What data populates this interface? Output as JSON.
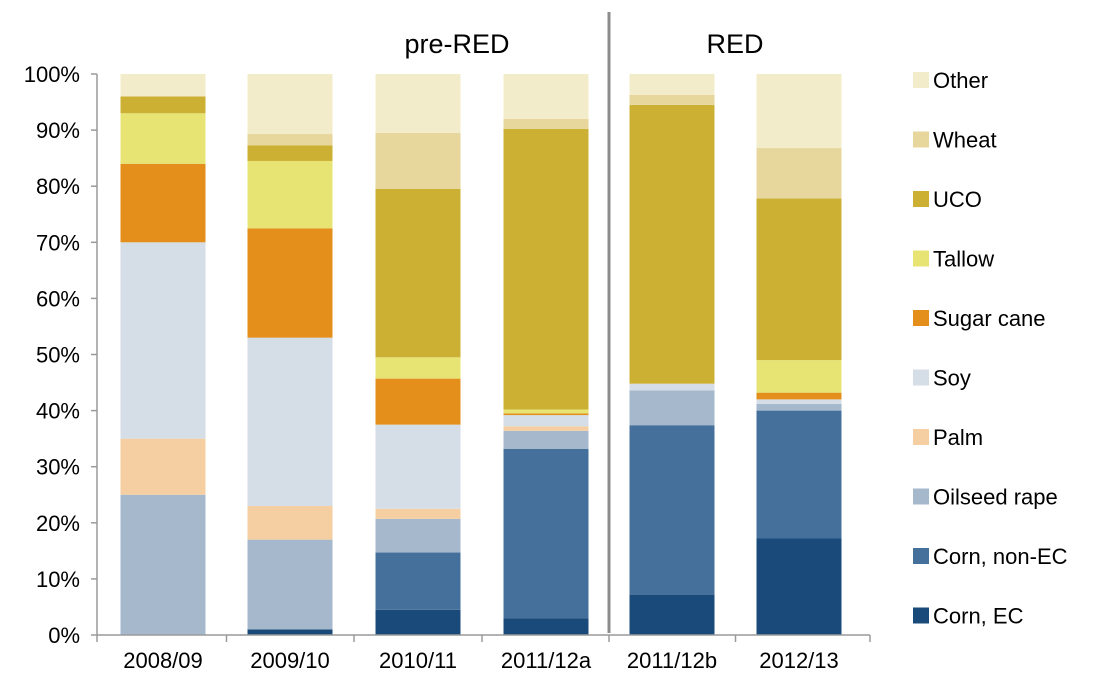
{
  "chart_data": {
    "type": "bar",
    "stacked": true,
    "categories": [
      "2008/09",
      "2009/10",
      "2010/11",
      "2011/12a",
      "2011/12b",
      "2012/13"
    ],
    "y_ticks": [
      "0%",
      "10%",
      "20%",
      "30%",
      "40%",
      "50%",
      "60%",
      "70%",
      "80%",
      "90%",
      "100%"
    ],
    "ylim": [
      0,
      100
    ],
    "grid": false,
    "legend_position": "right",
    "group_labels": [
      {
        "label": "pre-RED",
        "categories": [
          "2008/09",
          "2009/10",
          "2010/11",
          "2011/12a"
        ]
      },
      {
        "label": "RED",
        "categories": [
          "2011/12b",
          "2012/13"
        ]
      }
    ],
    "series": [
      {
        "name": "Corn, EC",
        "color": "#1a4a7a",
        "values": [
          0,
          1,
          4.5,
          3,
          7.2,
          17.2
        ]
      },
      {
        "name": "Corn, non-EC",
        "color": "#45709b",
        "values": [
          0,
          0,
          10.2,
          30.2,
          30.2,
          22.8
        ]
      },
      {
        "name": "Oilseed rape",
        "color": "#a5b8cc",
        "values": [
          25,
          16,
          6,
          3.2,
          6.2,
          1.2
        ]
      },
      {
        "name": "Palm",
        "color": "#f5cfa2",
        "values": [
          10,
          6,
          1.8,
          0.8,
          0,
          0
        ]
      },
      {
        "name": "Soy",
        "color": "#d5dde6",
        "values": [
          35,
          30,
          15,
          2,
          1.2,
          0.8
        ]
      },
      {
        "name": "Sugar cane",
        "color": "#e48f1b",
        "values": [
          14,
          19.5,
          8.2,
          0.3,
          0,
          1.2
        ]
      },
      {
        "name": "Tallow",
        "color": "#e7e474",
        "values": [
          9,
          12,
          3.8,
          0.7,
          0,
          5.8
        ]
      },
      {
        "name": "UCO",
        "color": "#ccb033",
        "values": [
          3,
          2.8,
          30,
          50,
          49.7,
          28.8
        ]
      },
      {
        "name": "Wheat",
        "color": "#e7d79c",
        "values": [
          0,
          2,
          10,
          1.8,
          1.8,
          9
        ]
      },
      {
        "name": "Other",
        "color": "#f3ecca",
        "values": [
          4,
          10.7,
          10.5,
          8,
          3.7,
          13.2
        ]
      }
    ]
  }
}
